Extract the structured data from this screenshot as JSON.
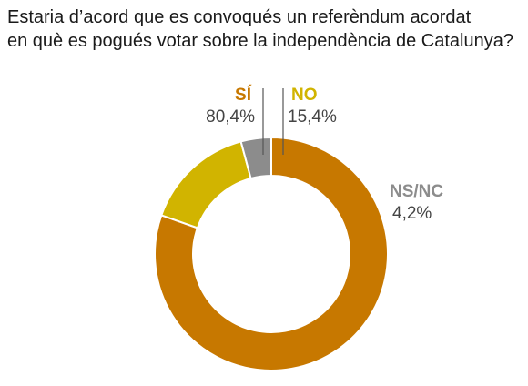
{
  "title_lines": [
    "Estaria d’acord que es convoqués un referèndum acordat",
    "en què es pogués votar sobre la independència de Catalunya?"
  ],
  "chart_data": {
    "type": "pie",
    "donut": true,
    "slices": [
      {
        "label": "SÍ",
        "value": 80.4,
        "value_text": "80,4%",
        "color": "#c77800"
      },
      {
        "label": "NO",
        "value": 15.4,
        "value_text": "15,4%",
        "color": "#d1b400"
      },
      {
        "label": "NS/NC",
        "value": 4.2,
        "value_text": "4,2%",
        "color": "#8c8c8c"
      }
    ],
    "start_angle": "12 o'clock",
    "direction": "clockwise"
  }
}
